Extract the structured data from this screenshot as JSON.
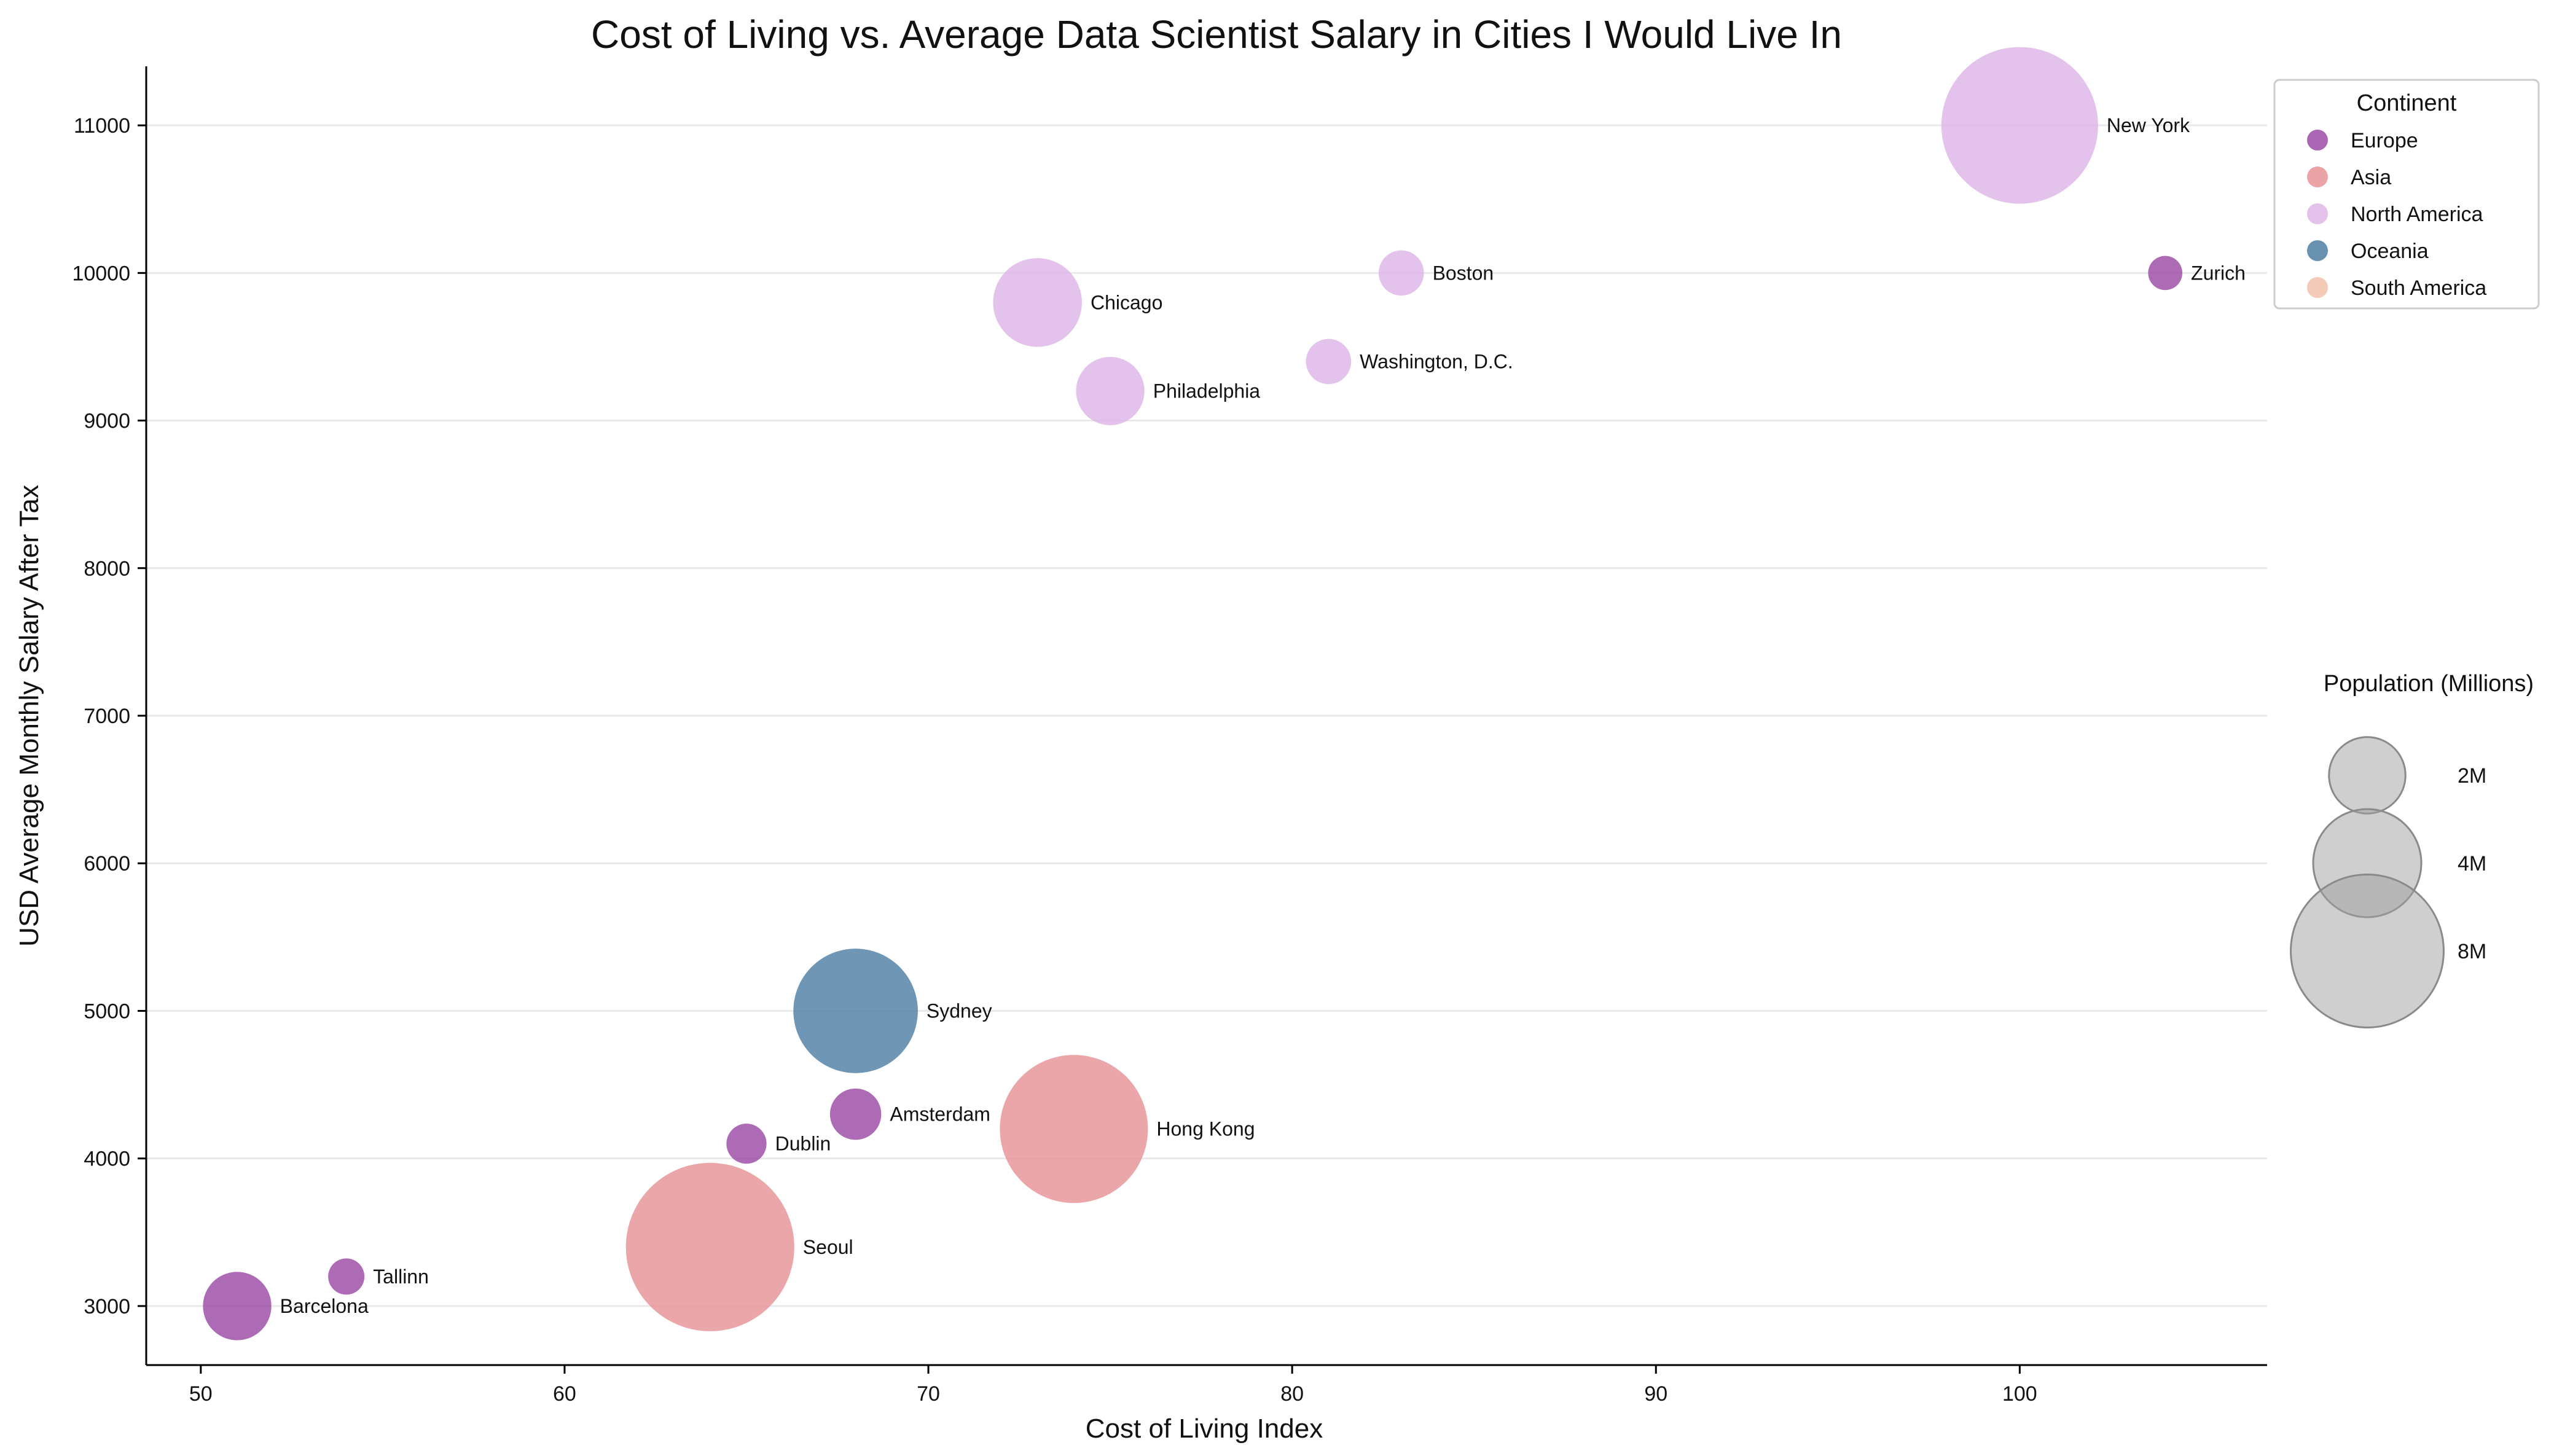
{
  "chart_data": {
    "type": "scatter",
    "title": "Cost of Living vs. Average Data Scientist Salary in Cities I Would Live In",
    "xlabel": "Cost of Living Index",
    "ylabel": "USD Average Monthly Salary After Tax",
    "xlim": [
      48.5,
      106.8
    ],
    "ylim": [
      2600,
      11400
    ],
    "xticks": [
      50,
      60,
      70,
      80,
      90,
      100
    ],
    "yticks": [
      3000,
      4000,
      5000,
      6000,
      7000,
      8000,
      9000,
      10000,
      11000
    ],
    "grid": "horizontal",
    "series": [
      {
        "name": "Europe",
        "color": "#9b4ba6",
        "points": [
          {
            "label": "Zurich",
            "x": 104,
            "y": 10000,
            "population": 0.4
          },
          {
            "label": "Amsterdam",
            "x": 68,
            "y": 4300,
            "population": 0.9
          },
          {
            "label": "Dublin",
            "x": 65,
            "y": 4100,
            "population": 0.55
          },
          {
            "label": "Tallinn",
            "x": 54,
            "y": 3200,
            "population": 0.45
          },
          {
            "label": "Barcelona",
            "x": 51,
            "y": 3000,
            "population": 1.6
          }
        ]
      },
      {
        "name": "Asia",
        "color": "#e69396",
        "points": [
          {
            "label": "Hong Kong",
            "x": 74,
            "y": 4200,
            "population": 7.5
          },
          {
            "label": "Seoul",
            "x": 64,
            "y": 3400,
            "population": 9.7
          }
        ]
      },
      {
        "name": "North America",
        "color": "#ddb6e8",
        "points": [
          {
            "label": "New York",
            "x": 100,
            "y": 11000,
            "population": 8.4
          },
          {
            "label": "Boston",
            "x": 83,
            "y": 10000,
            "population": 0.7
          },
          {
            "label": "Washington, D.C.",
            "x": 81,
            "y": 9400,
            "population": 0.7
          },
          {
            "label": "Chicago",
            "x": 73,
            "y": 9800,
            "population": 2.7
          },
          {
            "label": "Philadelphia",
            "x": 75,
            "y": 9200,
            "population": 1.6
          }
        ]
      },
      {
        "name": "Oceania",
        "color": "#4f7fa3",
        "points": [
          {
            "label": "Sydney",
            "x": 68,
            "y": 5000,
            "population": 5.3
          }
        ]
      },
      {
        "name": "South America",
        "color": "#f2c2ad",
        "points": []
      }
    ],
    "legend": {
      "title": "Continent",
      "placement": "top-right"
    },
    "size_legend": {
      "title": "Population (Millions)",
      "entries": [
        {
          "label": "2M",
          "value": 2
        },
        {
          "label": "4M",
          "value": 4
        },
        {
          "label": "8M",
          "value": 8
        }
      ]
    }
  }
}
